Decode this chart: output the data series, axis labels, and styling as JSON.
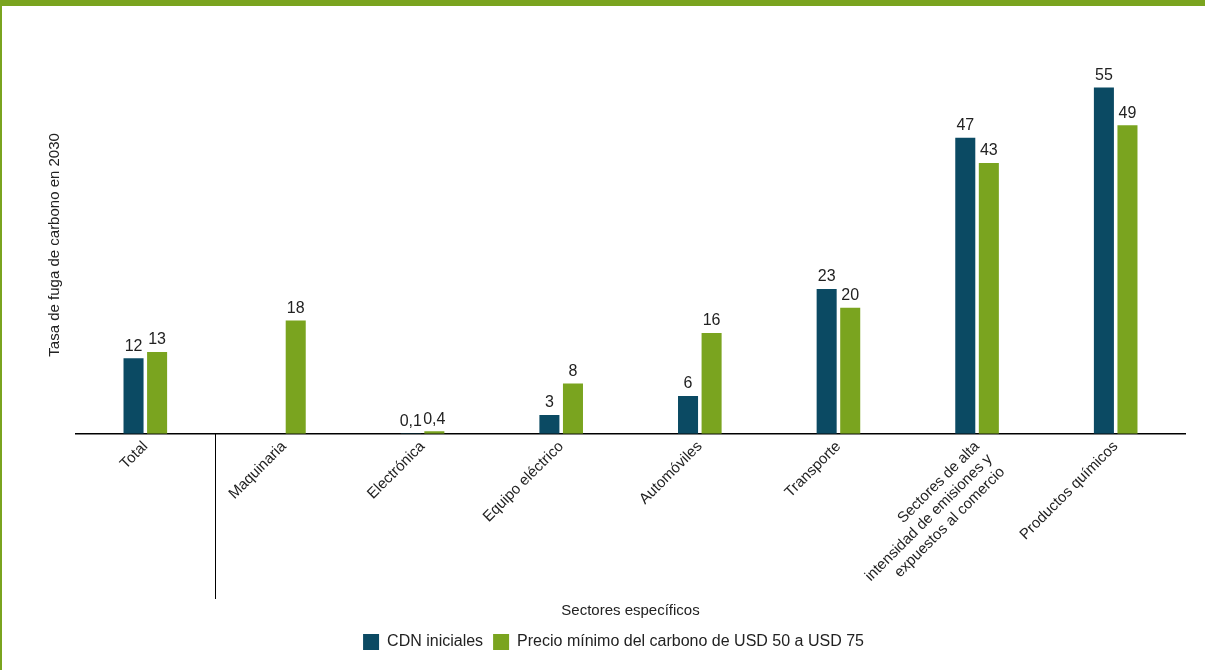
{
  "chart_data": {
    "type": "bar",
    "xlabel": "Sectores específicos",
    "ylabel": "Tasa de fuga de carbono en 2030",
    "categories": [
      "Total",
      "Maquinaria",
      "Electrónica",
      "Equipo eléctrico",
      "Automóviles",
      "Transporte",
      "Sectores de alta intensidad de emisiones y expuestos al comercio",
      "Productos químicos"
    ],
    "series": [
      {
        "name": "CDN iniciales",
        "color": "#0b4a63",
        "values": [
          12,
          null,
          0.1,
          3,
          6,
          23,
          47,
          55
        ],
        "value_labels": [
          "12",
          null,
          "0,1",
          "3",
          "6",
          "23",
          "47",
          "55"
        ]
      },
      {
        "name": "Precio mínimo del carbono de USD 50 a USD 75",
        "color": "#7aa41f",
        "values": [
          13,
          18,
          0.4,
          8,
          16,
          20,
          43,
          49
        ],
        "value_labels": [
          "13",
          "18",
          "0,4",
          "8",
          "16",
          "20",
          "43",
          "49"
        ]
      }
    ],
    "legend": "bottom",
    "grid": false
  }
}
